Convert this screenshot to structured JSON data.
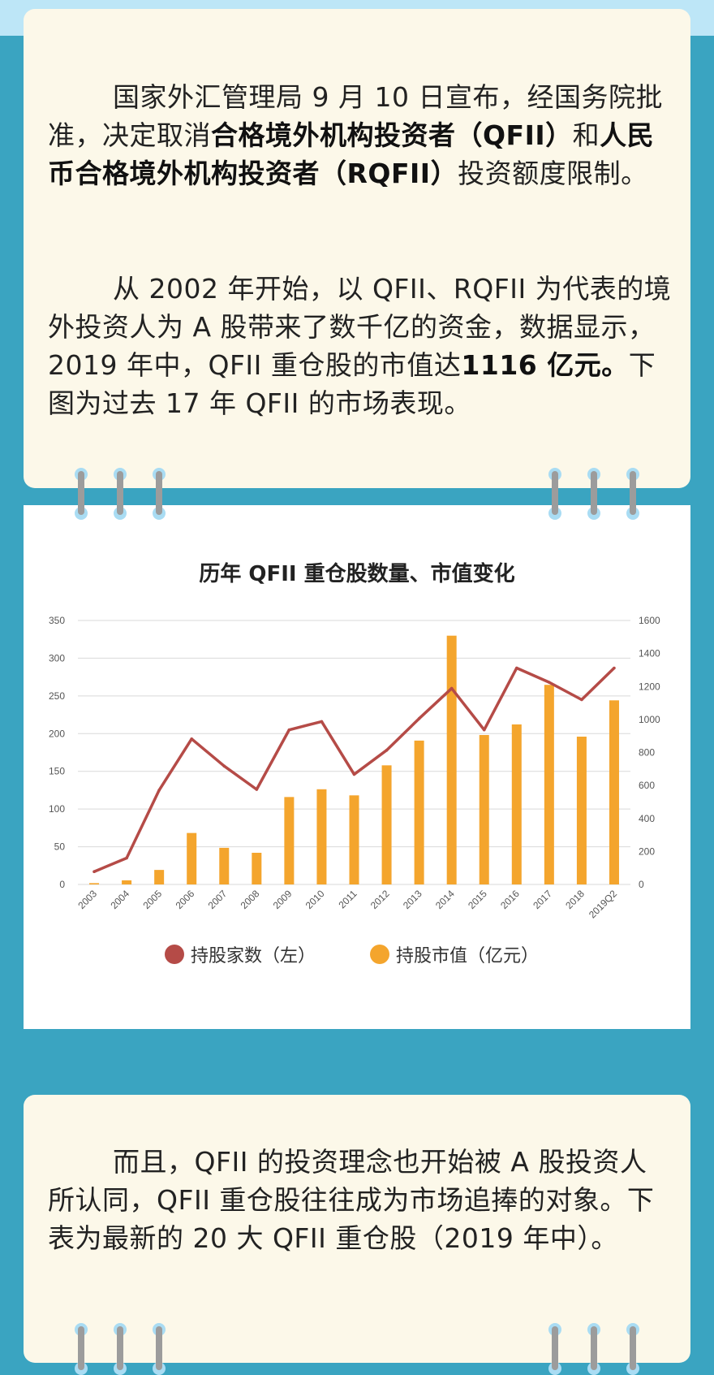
{
  "intro": {
    "p1": {
      "a": "国家外汇管理局 9 月 10 日宣布，经国务院批准，决定取消",
      "b": "合格境外机构投资者（QFII）",
      "c": "和",
      "d": "人民币合格境外机构投资者（RQFII）",
      "e": "投资额度限制。"
    },
    "p2": {
      "a": "从 2002 年开始，以 QFII、RQFII 为代表的境外投资人为 A 股带来了数千亿的资金，数据显示，2019 年中，QFII 重仓股的市值达",
      "b": "1116 亿元。",
      "c": "下图为过去 17 年 QFII 的市场表现。"
    }
  },
  "outro": {
    "p3": "而且，QFII 的投资理念也开始被 A 股投资人所认同，QFII 重仓股往往成为市场追捧的对象。下表为最新的 20 大 QFII 重仓股（2019 年中）。"
  },
  "colors": {
    "background": "#3aa4c1",
    "card": "#fcf8e9",
    "bar": "#f4a52d",
    "line": "#b54b47",
    "ring_hole": "#a9dcf3",
    "ring_wire": "#9c9c9c"
  },
  "chart_data": {
    "type": "bar",
    "title": "历年 QFII 重仓股数量、市值变化",
    "categories": [
      "2003",
      "2004",
      "2005",
      "2006",
      "2007",
      "2008",
      "2009",
      "2010",
      "2011",
      "2012",
      "2013",
      "2014",
      "2015",
      "2016",
      "2017",
      "2018",
      "2019Q2"
    ],
    "series": [
      {
        "name": "持股家数（左）",
        "type": "line",
        "axis": "left",
        "values": [
          17,
          35,
          125,
          193,
          157,
          126,
          205,
          216,
          146,
          178,
          220,
          260,
          205,
          287,
          268,
          245,
          287
        ]
      },
      {
        "name": "持股市值（亿元）",
        "type": "bar",
        "axis": "right",
        "values": [
          8,
          25,
          88,
          312,
          222,
          192,
          530,
          577,
          540,
          722,
          872,
          1508,
          906,
          970,
          1210,
          896,
          1116
        ]
      }
    ],
    "ylim_left": [
      0,
      350
    ],
    "yticks_left": [
      0,
      50,
      100,
      150,
      200,
      250,
      300,
      350
    ],
    "ylim_right": [
      0,
      1600
    ],
    "yticks_right": [
      0,
      200,
      400,
      600,
      800,
      1000,
      1200,
      1400,
      1600
    ],
    "grid": true,
    "legend": "bottom"
  }
}
